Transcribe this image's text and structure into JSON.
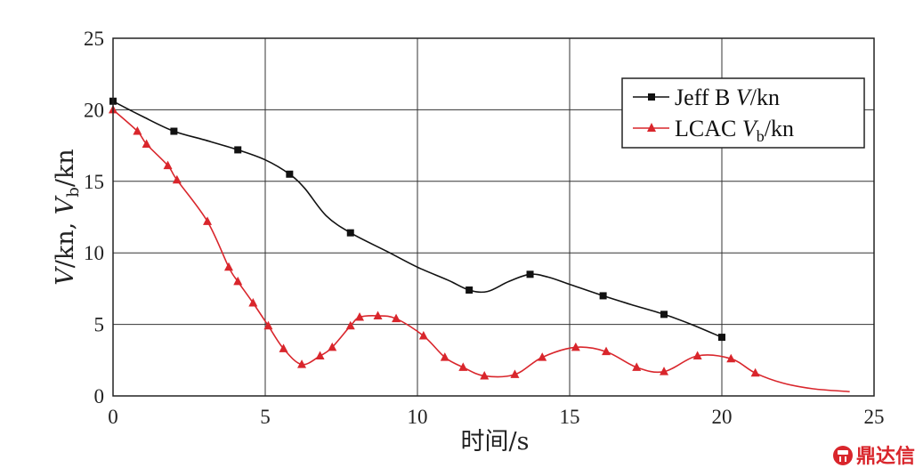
{
  "chart_data": {
    "type": "line",
    "title": "",
    "xlabel": "时间/s",
    "ylabel": "V/kn, Vb/kn",
    "xlim": [
      0,
      25
    ],
    "ylim": [
      0,
      25
    ],
    "xticks": [
      "0",
      "5",
      "10",
      "15",
      "20",
      "25"
    ],
    "yticks": [
      "0",
      "5",
      "10",
      "15",
      "20",
      "25"
    ],
    "grid": true,
    "legend_position": "top-right",
    "series": [
      {
        "name": "Jeff B V/kn",
        "color": "#111111",
        "marker": "square",
        "markers": [
          [
            0,
            20.6
          ],
          [
            2,
            18.5
          ],
          [
            4.1,
            17.2
          ],
          [
            5.8,
            15.5
          ],
          [
            7.8,
            11.4
          ],
          [
            11.7,
            7.4
          ],
          [
            13.7,
            8.5
          ],
          [
            16.1,
            7.0
          ],
          [
            18.1,
            5.7
          ],
          [
            20,
            4.1
          ]
        ],
        "curve": [
          [
            0,
            20.6
          ],
          [
            1,
            19.5
          ],
          [
            2,
            18.5
          ],
          [
            3,
            17.9
          ],
          [
            4.1,
            17.2
          ],
          [
            5,
            16.5
          ],
          [
            5.8,
            15.5
          ],
          [
            6.3,
            14.5
          ],
          [
            7,
            12.6
          ],
          [
            7.8,
            11.4
          ],
          [
            9,
            10.1
          ],
          [
            10,
            9.0
          ],
          [
            11,
            8.1
          ],
          [
            11.7,
            7.4
          ],
          [
            12.3,
            7.3
          ],
          [
            13,
            8.0
          ],
          [
            13.7,
            8.5
          ],
          [
            14.3,
            8.3
          ],
          [
            15,
            7.8
          ],
          [
            16.1,
            7.0
          ],
          [
            17,
            6.4
          ],
          [
            18.1,
            5.7
          ],
          [
            19,
            5.0
          ],
          [
            20,
            4.1
          ]
        ]
      },
      {
        "name": "LCAC Vb/kn",
        "color": "#d9262c",
        "marker": "triangle",
        "markers": [
          [
            0,
            20.0
          ],
          [
            0.8,
            18.5
          ],
          [
            1.1,
            17.6
          ],
          [
            1.8,
            16.1
          ],
          [
            2.1,
            15.1
          ],
          [
            3.1,
            12.2
          ],
          [
            3.8,
            9.0
          ],
          [
            4.1,
            8.0
          ],
          [
            4.6,
            6.5
          ],
          [
            5.1,
            4.9
          ],
          [
            5.6,
            3.3
          ],
          [
            6.2,
            2.2
          ],
          [
            6.8,
            2.8
          ],
          [
            7.2,
            3.4
          ],
          [
            7.8,
            4.9
          ],
          [
            8.1,
            5.5
          ],
          [
            8.7,
            5.6
          ],
          [
            9.3,
            5.4
          ],
          [
            10.2,
            4.2
          ],
          [
            10.9,
            2.7
          ],
          [
            11.5,
            2.0
          ],
          [
            12.2,
            1.4
          ],
          [
            13.2,
            1.5
          ],
          [
            14.1,
            2.7
          ],
          [
            15.2,
            3.4
          ],
          [
            16.2,
            3.1
          ],
          [
            17.2,
            2.0
          ],
          [
            18.1,
            1.7
          ],
          [
            19.2,
            2.8
          ],
          [
            20.3,
            2.6
          ],
          [
            21.1,
            1.6
          ]
        ],
        "curve": [
          [
            0,
            20.0
          ],
          [
            0.8,
            18.5
          ],
          [
            1.1,
            17.6
          ],
          [
            1.8,
            16.1
          ],
          [
            2.1,
            15.1
          ],
          [
            3.1,
            12.2
          ],
          [
            3.8,
            9.0
          ],
          [
            4.1,
            8.0
          ],
          [
            4.6,
            6.5
          ],
          [
            5.1,
            4.9
          ],
          [
            5.6,
            3.3
          ],
          [
            6.2,
            2.2
          ],
          [
            6.8,
            2.8
          ],
          [
            7.2,
            3.4
          ],
          [
            7.8,
            4.9
          ],
          [
            8.1,
            5.5
          ],
          [
            8.7,
            5.6
          ],
          [
            9.3,
            5.4
          ],
          [
            10.2,
            4.2
          ],
          [
            10.9,
            2.7
          ],
          [
            11.5,
            2.0
          ],
          [
            12.2,
            1.4
          ],
          [
            13.2,
            1.5
          ],
          [
            14.1,
            2.7
          ],
          [
            15.2,
            3.4
          ],
          [
            16.2,
            3.1
          ],
          [
            17.2,
            2.0
          ],
          [
            18.1,
            1.7
          ],
          [
            19.2,
            2.8
          ],
          [
            20.3,
            2.6
          ],
          [
            21.1,
            1.6
          ],
          [
            22,
            0.9
          ],
          [
            23,
            0.5
          ],
          [
            24.2,
            0.3
          ]
        ]
      }
    ]
  },
  "legend": {
    "items": [
      {
        "prefix": "Jeff B ",
        "var": "V",
        "sub": "",
        "suffix": "/kn"
      },
      {
        "prefix": "LCAC ",
        "var": "V",
        "sub": "b",
        "suffix": "/kn"
      }
    ]
  },
  "axis_text": {
    "ylabel_v": "V",
    "ylabel_kn1": "/kn, ",
    "ylabel_vb": "V",
    "ylabel_sub": "b",
    "ylabel_kn2": "/kn"
  },
  "watermark": {
    "text": "鼎达信",
    "icon": "watermark-logo-icon",
    "color": "#d9262c"
  }
}
